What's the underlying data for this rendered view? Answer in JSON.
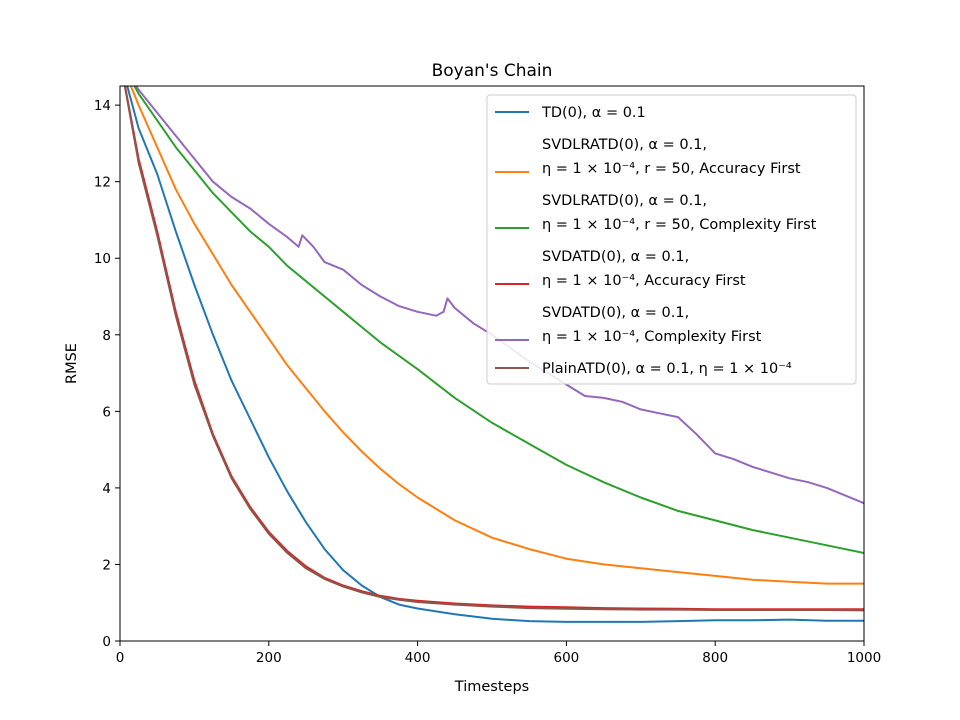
{
  "chart_data": {
    "type": "line",
    "title": "Boyan's Chain",
    "xlabel": "Timesteps",
    "ylabel": "RMSE",
    "xlim": [
      0,
      1000
    ],
    "ylim": [
      0,
      14.5
    ],
    "xticks": [
      0,
      200,
      400,
      600,
      800,
      1000
    ],
    "yticks": [
      0,
      2,
      4,
      6,
      8,
      10,
      12,
      14
    ],
    "grid": false,
    "legend_position": "top-right",
    "series": [
      {
        "name": "TD(0), α = 0.1",
        "legend_lines": [
          "TD(0), α = 0.1"
        ],
        "color": "#1f77b4",
        "x": [
          0,
          25,
          50,
          75,
          100,
          125,
          150,
          175,
          200,
          225,
          250,
          275,
          300,
          325,
          350,
          375,
          400,
          450,
          500,
          550,
          600,
          650,
          700,
          750,
          800,
          850,
          900,
          950,
          1000
        ],
        "y": [
          15.2,
          13.4,
          12.2,
          10.7,
          9.3,
          8.0,
          6.8,
          5.8,
          4.8,
          3.9,
          3.1,
          2.4,
          1.85,
          1.45,
          1.15,
          0.95,
          0.85,
          0.7,
          0.58,
          0.52,
          0.5,
          0.5,
          0.5,
          0.52,
          0.54,
          0.54,
          0.56,
          0.53,
          0.53
        ]
      },
      {
        "name": "SVDLRATD(0), α = 0.1, η = 1 × 10⁻⁴, r = 50, Accuracy First",
        "legend_lines": [
          "SVDLRATD(0), α = 0.1,",
          "η = 1 × 10⁻⁴, r = 50, Accuracy First"
        ],
        "color": "#ff7f0e",
        "x": [
          0,
          25,
          50,
          75,
          100,
          125,
          150,
          175,
          200,
          225,
          250,
          275,
          300,
          325,
          350,
          375,
          400,
          450,
          500,
          550,
          600,
          650,
          700,
          750,
          800,
          850,
          900,
          950,
          1000
        ],
        "y": [
          15.2,
          14.0,
          12.9,
          11.8,
          10.9,
          10.1,
          9.3,
          8.6,
          7.9,
          7.2,
          6.6,
          6.0,
          5.45,
          4.95,
          4.5,
          4.1,
          3.75,
          3.15,
          2.7,
          2.4,
          2.15,
          2.0,
          1.9,
          1.8,
          1.7,
          1.6,
          1.55,
          1.5,
          1.5
        ]
      },
      {
        "name": "SVDLRATD(0), α = 0.1, η = 1 × 10⁻⁴, r = 50, Complexity First",
        "legend_lines": [
          "SVDLRATD(0), α = 0.1,",
          "η = 1 × 10⁻⁴, r = 50, Complexity First"
        ],
        "color": "#2ca02c",
        "x": [
          0,
          25,
          50,
          75,
          100,
          125,
          150,
          175,
          200,
          225,
          250,
          275,
          300,
          325,
          350,
          375,
          400,
          450,
          500,
          550,
          600,
          650,
          700,
          750,
          800,
          850,
          900,
          950,
          1000
        ],
        "y": [
          15.2,
          14.3,
          13.6,
          12.9,
          12.3,
          11.7,
          11.2,
          10.7,
          10.3,
          9.8,
          9.4,
          9.0,
          8.6,
          8.2,
          7.8,
          7.45,
          7.1,
          6.35,
          5.7,
          5.15,
          4.6,
          4.15,
          3.75,
          3.4,
          3.15,
          2.9,
          2.7,
          2.5,
          2.3
        ]
      },
      {
        "name": "SVDATD(0), α = 0.1, η = 1 × 10⁻⁴, Accuracy First",
        "legend_lines": [
          "SVDATD(0), α = 0.1,",
          "η = 1 × 10⁻⁴, Accuracy First"
        ],
        "color": "#d62728",
        "x": [
          0,
          25,
          50,
          75,
          100,
          125,
          150,
          175,
          200,
          225,
          250,
          275,
          300,
          325,
          350,
          375,
          400,
          450,
          500,
          550,
          600,
          650,
          700,
          750,
          800,
          850,
          900,
          950,
          1000
        ],
        "y": [
          15.2,
          12.6,
          10.7,
          8.6,
          6.8,
          5.4,
          4.3,
          3.5,
          2.85,
          2.35,
          1.95,
          1.65,
          1.45,
          1.3,
          1.18,
          1.1,
          1.05,
          0.98,
          0.93,
          0.9,
          0.88,
          0.86,
          0.85,
          0.84,
          0.83,
          0.83,
          0.83,
          0.83,
          0.83
        ]
      },
      {
        "name": "SVDATD(0), α = 0.1, η = 1 × 10⁻⁴, Complexity First",
        "legend_lines": [
          "SVDATD(0), α = 0.1,",
          "η = 1 × 10⁻⁴, Complexity First"
        ],
        "color": "#9467bd",
        "x": [
          0,
          25,
          50,
          75,
          100,
          125,
          150,
          175,
          200,
          225,
          240,
          245,
          260,
          275,
          300,
          325,
          350,
          375,
          400,
          425,
          435,
          440,
          450,
          475,
          500,
          525,
          550,
          575,
          600,
          625,
          650,
          675,
          700,
          725,
          750,
          775,
          800,
          825,
          850,
          875,
          900,
          925,
          950,
          975,
          1000
        ],
        "y": [
          15.2,
          14.4,
          13.8,
          13.2,
          12.6,
          12.0,
          11.6,
          11.3,
          10.9,
          10.55,
          10.3,
          10.6,
          10.3,
          9.9,
          9.7,
          9.3,
          9.0,
          8.75,
          8.6,
          8.5,
          8.6,
          8.95,
          8.7,
          8.3,
          8.0,
          7.65,
          7.3,
          7.0,
          6.7,
          6.4,
          6.35,
          6.25,
          6.05,
          5.95,
          5.85,
          5.4,
          4.9,
          4.75,
          4.55,
          4.4,
          4.25,
          4.15,
          4.0,
          3.8,
          3.6
        ]
      },
      {
        "name": "PlainATD(0), α = 0.1, η = 1 × 10⁻⁴",
        "legend_lines": [
          "PlainATD(0), α = 0.1, η = 1 × 10⁻⁴"
        ],
        "color": "#8c564b",
        "x": [
          0,
          25,
          50,
          75,
          100,
          125,
          150,
          175,
          200,
          225,
          250,
          275,
          300,
          325,
          350,
          375,
          400,
          450,
          500,
          550,
          600,
          650,
          700,
          750,
          800,
          850,
          900,
          950,
          1000
        ],
        "y": [
          15.2,
          12.5,
          10.6,
          8.5,
          6.7,
          5.35,
          4.25,
          3.45,
          2.8,
          2.3,
          1.9,
          1.62,
          1.42,
          1.27,
          1.15,
          1.08,
          1.02,
          0.95,
          0.9,
          0.86,
          0.84,
          0.83,
          0.82,
          0.82,
          0.81,
          0.81,
          0.81,
          0.81,
          0.8
        ]
      }
    ]
  }
}
